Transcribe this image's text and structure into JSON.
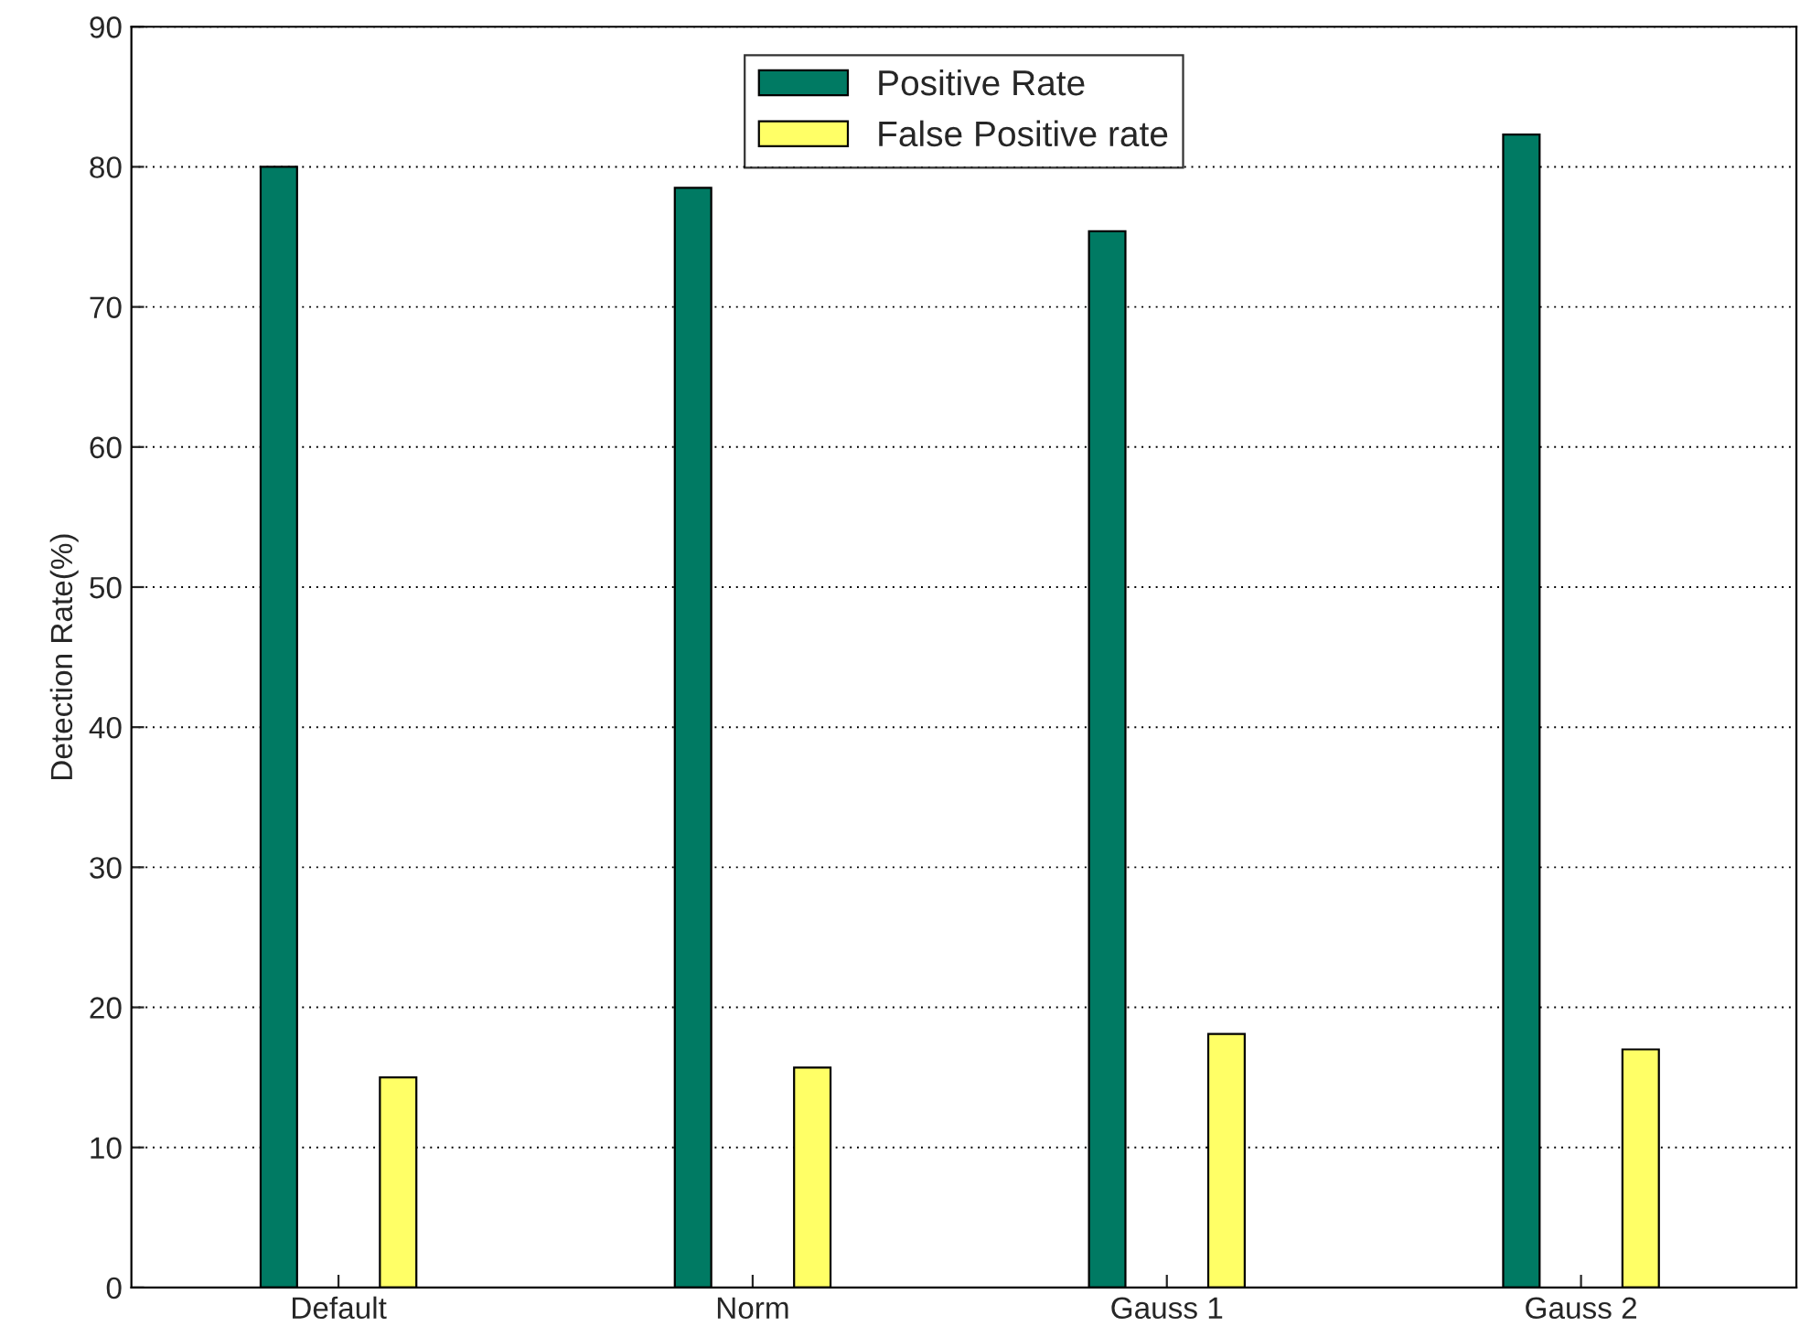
{
  "chart_data": {
    "type": "bar",
    "ylabel": "Detection Rate(%)",
    "categories": [
      "Default",
      "Norm",
      "Gauss 1",
      "Gauss 2"
    ],
    "series": [
      {
        "name": "Positive Rate",
        "color": "#007a63",
        "values": [
          80.0,
          78.5,
          75.4,
          82.3
        ]
      },
      {
        "name": "False Positive rate",
        "color": "#ffff66",
        "values": [
          15.0,
          15.7,
          18.1,
          17.0
        ]
      }
    ],
    "ylim": [
      0,
      90
    ],
    "yticks": [
      0,
      10,
      20,
      30,
      40,
      50,
      60,
      70,
      80,
      90
    ],
    "grid": "y",
    "legend": "top"
  }
}
